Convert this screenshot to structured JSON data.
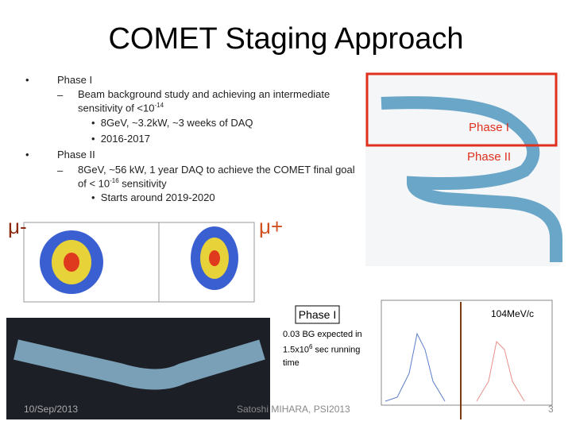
{
  "title": "COMET Staging Approach",
  "bullets": [
    {
      "label": "Phase I",
      "sub": {
        "text": "Beam background study and achieving an intermediate sensitivity of <10",
        "sup": "-14",
        "items": [
          "8GeV, ~3.2kW, ~3 weeks of DAQ",
          "2016-2017"
        ]
      }
    },
    {
      "label": "Phase II",
      "sub": {
        "text": "8GeV, ~56 kW, 1 year DAQ to achieve the COMET final goal of < 10",
        "sup": "-16",
        "after": " sensitivity",
        "items": [
          "Starts around 2019-2020"
        ]
      }
    }
  ],
  "plots": {
    "mu_minus": "μ-",
    "mu_plus": "μ+"
  },
  "layout_image": {
    "phase1": "Phase I",
    "phase2": "Phase II"
  },
  "note": {
    "box": "Phase I",
    "text": "0.03 BG expected in 1.5x10",
    "sup": "6",
    "after": " sec running time"
  },
  "histogram": {
    "label": "104MeV/c"
  },
  "footer": {
    "date": "10/Sep/2013",
    "author": "Satoshi MIHARA, PSI2013",
    "page": "3"
  }
}
